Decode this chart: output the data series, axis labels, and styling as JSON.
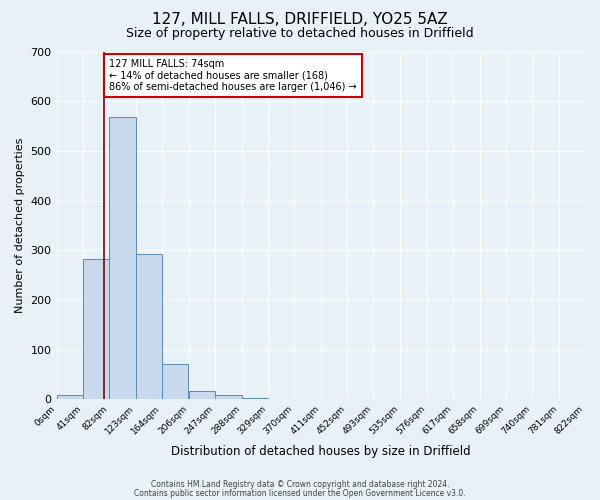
{
  "title": "127, MILL FALLS, DRIFFIELD, YO25 5AZ",
  "subtitle": "Size of property relative to detached houses in Driffield",
  "xlabel": "Distribution of detached houses by size in Driffield",
  "ylabel": "Number of detached properties",
  "footnote1": "Contains HM Land Registry data © Crown copyright and database right 2024.",
  "footnote2": "Contains public sector information licensed under the Open Government Licence v3.0.",
  "bin_edges": [
    0,
    41,
    82,
    123,
    164,
    206,
    247,
    288,
    329,
    370,
    411,
    452,
    493,
    535,
    576,
    617,
    658,
    699,
    740,
    781,
    822
  ],
  "bin_labels": [
    "0sqm",
    "41sqm",
    "82sqm",
    "123sqm",
    "164sqm",
    "206sqm",
    "247sqm",
    "288sqm",
    "329sqm",
    "370sqm",
    "411sqm",
    "452sqm",
    "493sqm",
    "535sqm",
    "576sqm",
    "617sqm",
    "658sqm",
    "699sqm",
    "740sqm",
    "781sqm",
    "822sqm"
  ],
  "bar_heights": [
    8,
    283,
    568,
    292,
    70,
    16,
    9,
    2,
    0,
    0,
    0,
    0,
    0,
    0,
    0,
    0,
    0,
    0,
    0,
    0
  ],
  "bar_color": "#c8d9ee",
  "bar_edge_color": "#5b8db8",
  "background_color": "#e8f0f8",
  "grid_color": "#ffffff",
  "property_line_x": 74,
  "property_line_color": "#8b0000",
  "ylim": [
    0,
    700
  ],
  "yticks": [
    0,
    100,
    200,
    300,
    400,
    500,
    600,
    700
  ],
  "annotation_text": "127 MILL FALLS: 74sqm\n← 14% of detached houses are smaller (168)\n86% of semi-detached houses are larger (1,046) →",
  "annotation_box_facecolor": "#ffffff",
  "annotation_box_edgecolor": "#cc0000",
  "title_fontsize": 11,
  "subtitle_fontsize": 9
}
